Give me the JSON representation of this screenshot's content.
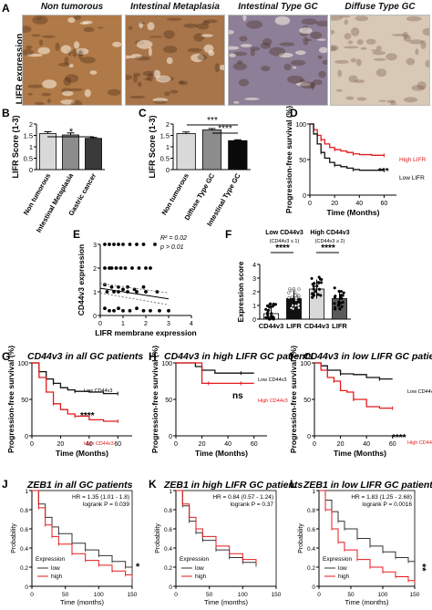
{
  "panels": {
    "A": {
      "label": "A",
      "ylabel": "LIFR expression",
      "images": [
        {
          "title": "Non tumorous",
          "color": "#b07a48"
        },
        {
          "title": "Intestinal Metaplasia",
          "color": "#a8754a"
        },
        {
          "title": "Intestinal Type GC",
          "color": "#8d7f98"
        },
        {
          "title": "Diffuse Type GC",
          "color": "#d8c8b6"
        }
      ]
    },
    "B": {
      "label": "B",
      "ylabel": "LIFR Score (1-3)",
      "sig": "*"
    },
    "C": {
      "label": "C",
      "ylabel": "LIFR Score (1-3)",
      "sig1": "***",
      "sig2": "****"
    },
    "D": {
      "label": "D",
      "ylabel": "Progression-free survival (%)",
      "xlabel": "Time (Months)",
      "high": "High LIFR",
      "low": "Low LIFR",
      "sig": "***"
    },
    "E": {
      "label": "E",
      "ylabel": "CD44v3 expression",
      "xlabel": "LIFR membrane expression",
      "r2": "R² = 0.02",
      "p": "p > 0.01"
    },
    "F": {
      "label": "F",
      "ylabel": "Expression score",
      "group1": "Low CD44v3",
      "group1sub": "(CD44v3 ≤ 1)",
      "group2": "High CD44v3",
      "group2sub": "(CD44v3 ≥ 2)",
      "sig1": "****",
      "sig2": "****"
    },
    "G": {
      "label": "G",
      "title": "CD44v3 in all GC patients",
      "ylabel": "Progression-free survival (%)",
      "xlabel": "Time (Months)",
      "low": "Low CD44v3",
      "high": "High CD44v3",
      "sig": "****"
    },
    "H": {
      "label": "H",
      "title": "CD44v3 in high LIFR GC patients",
      "ylabel": "Progression-free survival (%)",
      "xlabel": "Time (Months)",
      "low": "Low CD44v3",
      "high": "High CD44v3",
      "sig": "ns"
    },
    "I": {
      "label": "I",
      "title": "CD44v3 in low LIFR GC patients",
      "ylabel": "Progression-free survival (%)",
      "xlabel": "Time (Months)",
      "low": "Low CD44v3",
      "high": "High CD44v3",
      "sig": "****"
    },
    "J": {
      "label": "J",
      "title": "ZEB1 in all GC patients",
      "hr": "HR = 1.35 (1.01 - 1.8)",
      "logrank": "logrank P = 0.039",
      "ylabel": "Probability",
      "xlabel": "Time (months)",
      "legend_title": "Expression",
      "low": "low",
      "high": "high",
      "sig": "*"
    },
    "K": {
      "label": "K",
      "title": "ZEB1 in high LIFR GC patients",
      "hr": "HR = 0.84 (0.57 - 1.24)",
      "logrank": "logrank P = 0.37",
      "ylabel": "Probability",
      "xlabel": "Time (months)",
      "legend_title": "Expression",
      "low": "low",
      "high": "high"
    },
    "L": {
      "label": "L",
      "title": "ZEB1 in low LIFR GC patients",
      "hr": "HR = 1.83 (1.25 - 2.68)",
      "logrank": "logrank P = 0.0016",
      "ylabel": "Probability",
      "xlabel": "Time (months)",
      "legend_title": "Expression",
      "low": "low",
      "high": "high",
      "sig": "**"
    }
  },
  "chart_data": [
    {
      "id": "B",
      "type": "bar",
      "categories": [
        "Non tumorous",
        "Intestinal Metaplasia",
        "Gastric cancer"
      ],
      "values": [
        1.58,
        1.52,
        1.37
      ],
      "errors": [
        0.08,
        0.09,
        0.04
      ],
      "ylabel": "LIFR Score (1-3)",
      "ylim": [
        0,
        2
      ],
      "yticks": [
        0,
        0.5,
        1,
        1.5,
        2
      ],
      "colors": [
        "#d9d9d9",
        "#8c8c8c",
        "#3a3a3a"
      ]
    },
    {
      "id": "C",
      "type": "bar",
      "categories": [
        "Non tumorous",
        "Diffuse Type GC",
        "Intestinal Type GC"
      ],
      "values": [
        1.58,
        1.74,
        1.27
      ],
      "errors": [
        0.07,
        0.06,
        0.04
      ],
      "ylabel": "LIFR Score (1-3)",
      "ylim": [
        0,
        2
      ],
      "yticks": [
        0,
        0.5,
        1,
        1.5,
        2
      ],
      "colors": [
        "#d9d9d9",
        "#8c8c8c",
        "#0a0a0a"
      ]
    },
    {
      "id": "D",
      "type": "line",
      "xlabel": "Time (Months)",
      "ylabel": "Progression-free survival (%)",
      "xlim": [
        0,
        70
      ],
      "ylim": [
        0,
        100
      ],
      "xticks": [
        0,
        20,
        40,
        60
      ],
      "yticks": [
        0,
        50,
        100
      ],
      "series": [
        {
          "name": "High LIFR",
          "color": "#e41a1c",
          "x": [
            0,
            3,
            6,
            9,
            12,
            16,
            20,
            25,
            30,
            35,
            40,
            50,
            60
          ],
          "y": [
            100,
            92,
            84,
            78,
            72,
            67,
            64,
            62,
            60,
            58,
            57,
            56,
            56
          ]
        },
        {
          "name": "Low LIFR",
          "color": "#111111",
          "x": [
            0,
            3,
            6,
            9,
            12,
            16,
            20,
            25,
            30,
            35,
            40,
            50,
            60
          ],
          "y": [
            100,
            86,
            72,
            60,
            52,
            46,
            42,
            40,
            38,
            36,
            35,
            35,
            35
          ]
        }
      ]
    },
    {
      "id": "E",
      "type": "scatter",
      "xlabel": "LIFR membrane expression",
      "ylabel": "CD44v3 expression",
      "xlim": [
        0,
        4
      ],
      "ylim": [
        0,
        3
      ],
      "xticks": [
        0,
        1,
        2,
        3,
        4
      ],
      "yticks": [
        0,
        1,
        2,
        3
      ],
      "points": [
        [
          0.2,
          3
        ],
        [
          0.4,
          3
        ],
        [
          0.6,
          3
        ],
        [
          0.8,
          3
        ],
        [
          1.0,
          3
        ],
        [
          1.3,
          3
        ],
        [
          1.6,
          3
        ],
        [
          1.9,
          3
        ],
        [
          2.4,
          3
        ],
        [
          0.2,
          2
        ],
        [
          0.4,
          2
        ],
        [
          0.5,
          2
        ],
        [
          0.7,
          2
        ],
        [
          0.9,
          2
        ],
        [
          1.1,
          2
        ],
        [
          1.4,
          2
        ],
        [
          1.7,
          2
        ],
        [
          2.0,
          2
        ],
        [
          2.2,
          2
        ],
        [
          0.2,
          1.3
        ],
        [
          0.5,
          1.2
        ],
        [
          0.8,
          1.2
        ],
        [
          1.0,
          1.1
        ],
        [
          1.2,
          1.2
        ],
        [
          1.5,
          1.1
        ],
        [
          1.9,
          1.2
        ],
        [
          0.3,
          1
        ],
        [
          0.6,
          1
        ],
        [
          0.8,
          1
        ],
        [
          1.2,
          1
        ],
        [
          1.6,
          1
        ],
        [
          2.0,
          1
        ],
        [
          2.5,
          1
        ],
        [
          0.2,
          0.3
        ],
        [
          0.4,
          0.2
        ],
        [
          0.6,
          0.2
        ],
        [
          0.8,
          0.3
        ],
        [
          1.0,
          0.2
        ],
        [
          1.3,
          0.2
        ],
        [
          1.6,
          0.3
        ],
        [
          1.9,
          0.2
        ],
        [
          2.2,
          0.2
        ],
        [
          2.6,
          0.2
        ],
        [
          3.0,
          0.2
        ]
      ],
      "fit": [
        [
          0,
          1.15
        ],
        [
          3,
          0.7
        ]
      ]
    },
    {
      "id": "F",
      "type": "bar",
      "categories": [
        "CD44v3",
        "LIFR",
        "CD44v3",
        "LIFR"
      ],
      "values": [
        0.4,
        1.5,
        2.2,
        1.5
      ],
      "errors": [
        0.6,
        0.6,
        0.7,
        0.6
      ],
      "ylabel": "Expression score",
      "ylim": [
        0,
        4
      ],
      "yticks": [
        0,
        1,
        2,
        3,
        4
      ],
      "colors": [
        "#ffffff",
        "#111111",
        "#d9d9d9",
        "#5a5a5a"
      ]
    },
    {
      "id": "G",
      "type": "line",
      "xlim": [
        0,
        70
      ],
      "ylim": [
        0,
        100
      ],
      "xticks": [
        0,
        20,
        40,
        60
      ],
      "yticks": [
        0,
        50,
        100
      ],
      "series": [
        {
          "name": "Low CD44v3",
          "color": "#111111",
          "x": [
            0,
            5,
            10,
            15,
            20,
            25,
            30,
            40,
            50,
            60
          ],
          "y": [
            100,
            88,
            78,
            72,
            66,
            63,
            61,
            60,
            58,
            58
          ]
        },
        {
          "name": "High CD44v3",
          "color": "#e41a1c",
          "x": [
            0,
            5,
            10,
            15,
            20,
            25,
            30,
            40,
            50,
            60
          ],
          "y": [
            100,
            80,
            60,
            44,
            36,
            30,
            27,
            22,
            20,
            20
          ]
        }
      ]
    },
    {
      "id": "H",
      "type": "line",
      "xlim": [
        0,
        70
      ],
      "ylim": [
        0,
        100
      ],
      "xticks": [
        0,
        20,
        40,
        60
      ],
      "yticks": [
        0,
        50,
        100
      ],
      "series": [
        {
          "name": "Low CD44v3",
          "color": "#111111",
          "x": [
            0,
            10,
            15,
            20,
            30,
            40,
            50,
            60
          ],
          "y": [
            100,
            100,
            95,
            90,
            86,
            86,
            86,
            86
          ]
        },
        {
          "name": "High CD44v3",
          "color": "#e41a1c",
          "x": [
            0,
            15,
            20,
            25,
            30,
            40,
            50,
            60
          ],
          "y": [
            100,
            100,
            72,
            72,
            72,
            72,
            72,
            72
          ]
        }
      ]
    },
    {
      "id": "I",
      "type": "line",
      "xlim": [
        0,
        70
      ],
      "ylim": [
        0,
        100
      ],
      "xticks": [
        0,
        20,
        40,
        60
      ],
      "yticks": [
        0,
        50,
        100
      ],
      "series": [
        {
          "name": "Low CD44v3",
          "color": "#111111",
          "x": [
            0,
            5,
            10,
            20,
            30,
            40,
            50,
            60
          ],
          "y": [
            100,
            96,
            90,
            85,
            84,
            80,
            78,
            78
          ]
        },
        {
          "name": "High CD44v3",
          "color": "#e41a1c",
          "x": [
            0,
            5,
            10,
            15,
            20,
            25,
            30,
            40,
            50,
            60
          ],
          "y": [
            100,
            90,
            80,
            75,
            62,
            60,
            50,
            40,
            38,
            38
          ]
        }
      ]
    },
    {
      "id": "J",
      "type": "line",
      "xlim": [
        0,
        150
      ],
      "ylim": [
        0,
        1
      ],
      "xticks": [
        0,
        50,
        100,
        150
      ],
      "yticks": [
        0,
        0.2,
        0.4,
        0.6,
        0.8,
        1
      ],
      "series": [
        {
          "name": "low",
          "color": "#333333",
          "x": [
            0,
            10,
            20,
            30,
            40,
            60,
            80,
            100,
            120,
            140,
            150
          ],
          "y": [
            1,
            0.86,
            0.72,
            0.62,
            0.55,
            0.45,
            0.38,
            0.32,
            0.26,
            0.2,
            0.18
          ]
        },
        {
          "name": "high",
          "color": "#e41a1c",
          "x": [
            0,
            10,
            20,
            30,
            40,
            60,
            80,
            100,
            120,
            140,
            150
          ],
          "y": [
            1,
            0.82,
            0.64,
            0.52,
            0.44,
            0.34,
            0.27,
            0.22,
            0.16,
            0.12,
            0.1
          ]
        }
      ]
    },
    {
      "id": "K",
      "type": "line",
      "xlim": [
        0,
        150
      ],
      "ylim": [
        0,
        1
      ],
      "xticks": [
        0,
        50,
        100,
        150
      ],
      "yticks": [
        0,
        0.2,
        0.4,
        0.6,
        0.8,
        1
      ],
      "series": [
        {
          "name": "low",
          "color": "#333333",
          "x": [
            0,
            10,
            20,
            30,
            40,
            60,
            80,
            100,
            120
          ],
          "y": [
            1,
            0.84,
            0.68,
            0.56,
            0.48,
            0.38,
            0.3,
            0.25,
            0.22
          ]
        },
        {
          "name": "high",
          "color": "#e41a1c",
          "x": [
            0,
            10,
            20,
            30,
            40,
            60,
            80,
            100,
            120
          ],
          "y": [
            1,
            0.86,
            0.72,
            0.6,
            0.52,
            0.42,
            0.34,
            0.28,
            0.25
          ]
        }
      ]
    },
    {
      "id": "L",
      "type": "line",
      "xlim": [
        0,
        150
      ],
      "ylim": [
        0,
        1
      ],
      "xticks": [
        0,
        50,
        100,
        150
      ],
      "yticks": [
        0,
        0.2,
        0.4,
        0.6,
        0.8,
        1
      ],
      "series": [
        {
          "name": "low",
          "color": "#333333",
          "x": [
            0,
            10,
            20,
            30,
            40,
            60,
            80,
            100,
            120,
            140,
            150
          ],
          "y": [
            1,
            0.9,
            0.78,
            0.68,
            0.6,
            0.5,
            0.42,
            0.36,
            0.3,
            0.26,
            0.24
          ]
        },
        {
          "name": "high",
          "color": "#e41a1c",
          "x": [
            0,
            10,
            20,
            30,
            40,
            60,
            80,
            100,
            120,
            140,
            150
          ],
          "y": [
            1,
            0.8,
            0.6,
            0.46,
            0.38,
            0.28,
            0.2,
            0.15,
            0.1,
            0.06,
            0.05
          ]
        }
      ]
    }
  ]
}
